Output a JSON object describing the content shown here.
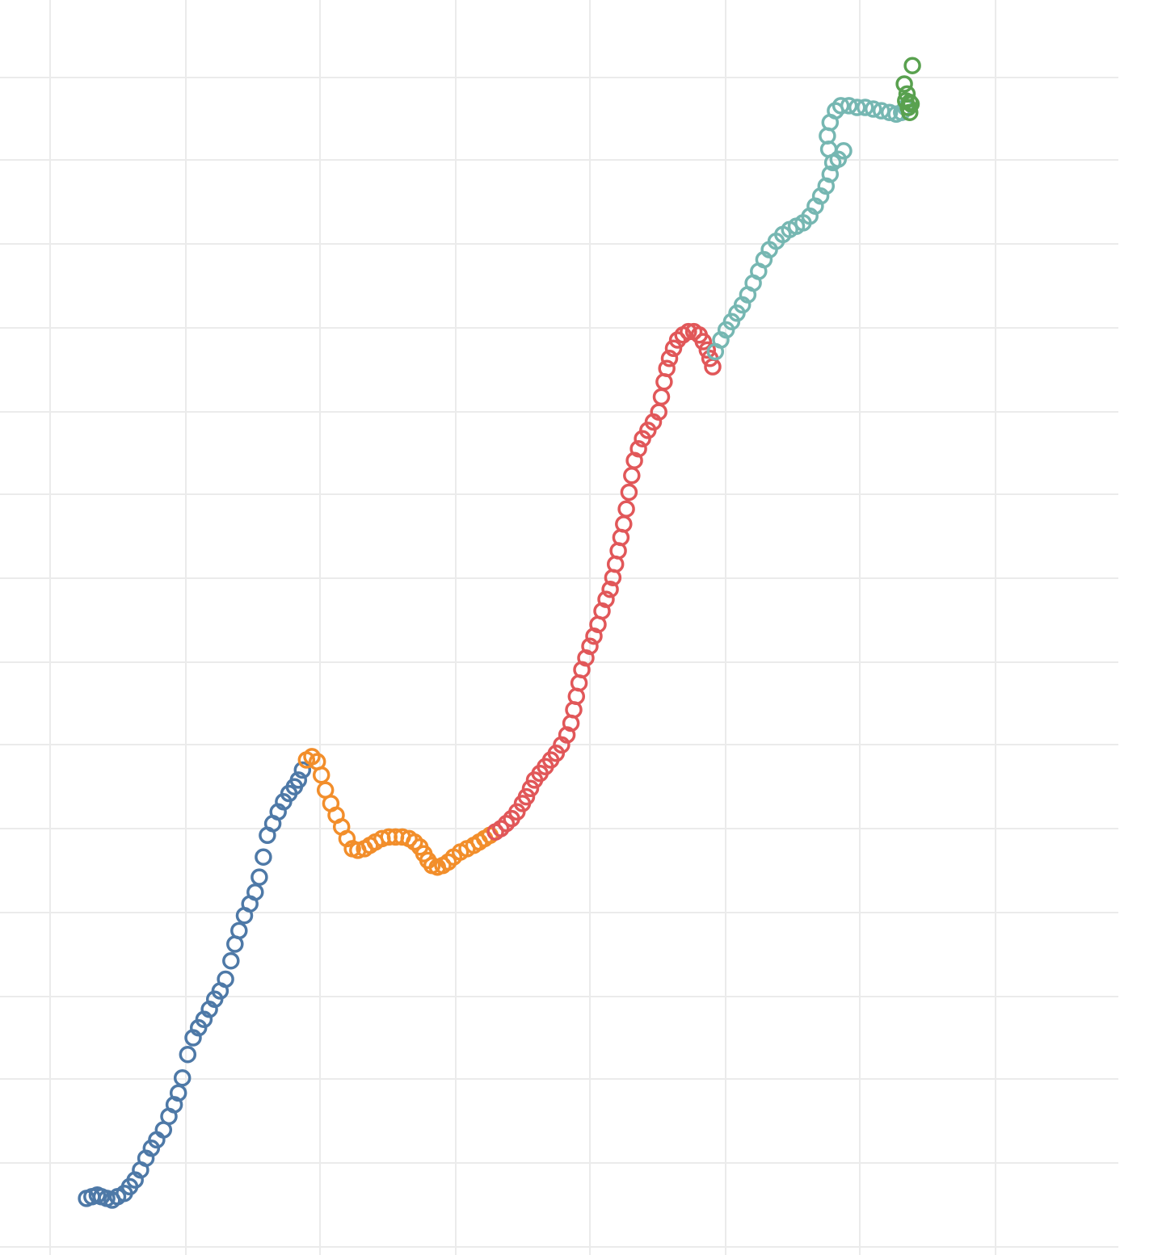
{
  "chart_data": {
    "type": "scatter",
    "title": "",
    "xlabel": "",
    "ylabel": "",
    "xlim": [
      0,
      8.25
    ],
    "ylim": [
      0,
      14.8
    ],
    "grid": true,
    "legend": "none",
    "marker": "open-circle",
    "series": [
      {
        "color": "#4e79a7",
        "points": [
          [
            0.27,
            0.58
          ],
          [
            0.31,
            0.6
          ],
          [
            0.35,
            0.62
          ],
          [
            0.38,
            0.6
          ],
          [
            0.42,
            0.58
          ],
          [
            0.46,
            0.56
          ],
          [
            0.5,
            0.6
          ],
          [
            0.55,
            0.64
          ],
          [
            0.59,
            0.72
          ],
          [
            0.63,
            0.8
          ],
          [
            0.67,
            0.92
          ],
          [
            0.71,
            1.06
          ],
          [
            0.75,
            1.18
          ],
          [
            0.79,
            1.28
          ],
          [
            0.84,
            1.4
          ],
          [
            0.88,
            1.56
          ],
          [
            0.92,
            1.7
          ],
          [
            0.95,
            1.84
          ],
          [
            0.98,
            2.02
          ],
          [
            1.02,
            2.3
          ],
          [
            1.06,
            2.5
          ],
          [
            1.1,
            2.62
          ],
          [
            1.14,
            2.72
          ],
          [
            1.18,
            2.84
          ],
          [
            1.22,
            2.96
          ],
          [
            1.26,
            3.06
          ],
          [
            1.3,
            3.2
          ],
          [
            1.34,
            3.42
          ],
          [
            1.37,
            3.62
          ],
          [
            1.4,
            3.78
          ],
          [
            1.44,
            3.96
          ],
          [
            1.48,
            4.1
          ],
          [
            1.52,
            4.24
          ],
          [
            1.55,
            4.42
          ],
          [
            1.58,
            4.66
          ],
          [
            1.61,
            4.92
          ],
          [
            1.65,
            5.06
          ],
          [
            1.69,
            5.2
          ],
          [
            1.73,
            5.32
          ],
          [
            1.77,
            5.42
          ],
          [
            1.81,
            5.5
          ],
          [
            1.84,
            5.58
          ],
          [
            1.87,
            5.7
          ]
        ]
      },
      {
        "color": "#f28e2b",
        "points": [
          [
            1.9,
            5.82
          ],
          [
            1.94,
            5.86
          ],
          [
            1.98,
            5.8
          ],
          [
            2.01,
            5.64
          ],
          [
            2.04,
            5.46
          ],
          [
            2.08,
            5.3
          ],
          [
            2.12,
            5.16
          ],
          [
            2.16,
            5.02
          ],
          [
            2.2,
            4.88
          ],
          [
            2.24,
            4.76
          ],
          [
            2.28,
            4.74
          ],
          [
            2.33,
            4.76
          ],
          [
            2.37,
            4.8
          ],
          [
            2.41,
            4.84
          ],
          [
            2.46,
            4.88
          ],
          [
            2.51,
            4.9
          ],
          [
            2.56,
            4.9
          ],
          [
            2.61,
            4.9
          ],
          [
            2.66,
            4.88
          ],
          [
            2.7,
            4.84
          ],
          [
            2.74,
            4.78
          ],
          [
            2.77,
            4.7
          ],
          [
            2.8,
            4.62
          ],
          [
            2.83,
            4.56
          ],
          [
            2.87,
            4.54
          ],
          [
            2.91,
            4.56
          ],
          [
            2.95,
            4.6
          ],
          [
            2.99,
            4.66
          ],
          [
            3.04,
            4.72
          ],
          [
            3.09,
            4.76
          ],
          [
            3.14,
            4.8
          ],
          [
            3.18,
            4.84
          ],
          [
            3.22,
            4.88
          ],
          [
            3.26,
            4.92
          ]
        ]
      },
      {
        "color": "#e15759",
        "points": [
          [
            3.3,
            4.96
          ],
          [
            3.34,
            5.0
          ],
          [
            3.38,
            5.06
          ],
          [
            3.42,
            5.12
          ],
          [
            3.46,
            5.2
          ],
          [
            3.5,
            5.3
          ],
          [
            3.53,
            5.38
          ],
          [
            3.56,
            5.48
          ],
          [
            3.59,
            5.58
          ],
          [
            3.63,
            5.66
          ],
          [
            3.67,
            5.74
          ],
          [
            3.71,
            5.82
          ],
          [
            3.75,
            5.9
          ],
          [
            3.79,
            6.0
          ],
          [
            3.83,
            6.12
          ],
          [
            3.86,
            6.26
          ],
          [
            3.88,
            6.42
          ],
          [
            3.9,
            6.58
          ],
          [
            3.92,
            6.74
          ],
          [
            3.94,
            6.9
          ],
          [
            3.97,
            7.04
          ],
          [
            4.0,
            7.18
          ],
          [
            4.03,
            7.3
          ],
          [
            4.06,
            7.44
          ],
          [
            4.09,
            7.6
          ],
          [
            4.12,
            7.74
          ],
          [
            4.15,
            7.86
          ],
          [
            4.17,
            8.0
          ],
          [
            4.19,
            8.16
          ],
          [
            4.21,
            8.32
          ],
          [
            4.23,
            8.48
          ],
          [
            4.25,
            8.64
          ],
          [
            4.27,
            8.82
          ],
          [
            4.29,
            9.02
          ],
          [
            4.31,
            9.22
          ],
          [
            4.33,
            9.4
          ],
          [
            4.36,
            9.54
          ],
          [
            4.39,
            9.66
          ],
          [
            4.43,
            9.76
          ],
          [
            4.47,
            9.86
          ],
          [
            4.51,
            9.98
          ],
          [
            4.53,
            10.16
          ],
          [
            4.55,
            10.34
          ],
          [
            4.57,
            10.5
          ],
          [
            4.59,
            10.62
          ],
          [
            4.62,
            10.74
          ],
          [
            4.65,
            10.84
          ],
          [
            4.69,
            10.9
          ],
          [
            4.73,
            10.94
          ],
          [
            4.77,
            10.94
          ],
          [
            4.81,
            10.9
          ],
          [
            4.84,
            10.82
          ],
          [
            4.87,
            10.72
          ],
          [
            4.89,
            10.62
          ],
          [
            4.91,
            10.52
          ]
        ]
      },
      {
        "color": "#76b7b2",
        "points": [
          [
            4.93,
            10.7
          ],
          [
            4.97,
            10.84
          ],
          [
            5.01,
            10.96
          ],
          [
            5.05,
            11.06
          ],
          [
            5.09,
            11.16
          ],
          [
            5.13,
            11.26
          ],
          [
            5.17,
            11.38
          ],
          [
            5.21,
            11.52
          ],
          [
            5.25,
            11.66
          ],
          [
            5.29,
            11.8
          ],
          [
            5.33,
            11.92
          ],
          [
            5.38,
            12.02
          ],
          [
            5.43,
            12.1
          ],
          [
            5.48,
            12.16
          ],
          [
            5.53,
            12.2
          ],
          [
            5.58,
            12.24
          ],
          [
            5.63,
            12.32
          ],
          [
            5.67,
            12.44
          ],
          [
            5.71,
            12.56
          ],
          [
            5.75,
            12.68
          ],
          [
            5.78,
            12.82
          ],
          [
            5.8,
            12.96
          ],
          [
            5.77,
            13.12
          ],
          [
            5.76,
            13.28
          ],
          [
            5.78,
            13.44
          ],
          [
            5.82,
            13.58
          ],
          [
            5.86,
            13.64
          ],
          [
            5.92,
            13.64
          ],
          [
            5.98,
            13.62
          ],
          [
            6.04,
            13.62
          ],
          [
            6.1,
            13.6
          ],
          [
            6.16,
            13.58
          ],
          [
            6.22,
            13.56
          ],
          [
            6.27,
            13.54
          ],
          [
            6.31,
            13.56
          ],
          [
            6.34,
            13.62
          ],
          [
            5.84,
            13.0
          ],
          [
            5.88,
            13.1
          ]
        ]
      },
      {
        "color": "#59a14f",
        "points": [
          [
            6.33,
            13.9
          ],
          [
            6.35,
            13.78
          ],
          [
            6.37,
            13.68
          ],
          [
            6.36,
            13.62
          ],
          [
            6.38,
            13.66
          ],
          [
            6.34,
            13.7
          ],
          [
            6.39,
            14.12
          ],
          [
            6.37,
            13.56
          ]
        ]
      }
    ]
  }
}
